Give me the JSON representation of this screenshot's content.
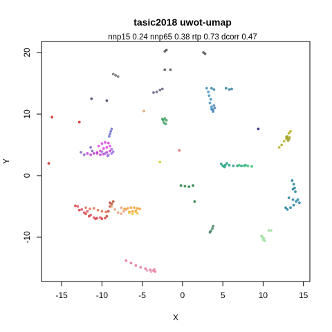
{
  "chart_data": {
    "type": "scatter",
    "title": "tasic2018 uwot-umap",
    "subtitle": "nnp15 0.24 nnp65 0.38 rtp 0.73 dcorr 0.47",
    "xlabel": "X",
    "ylabel": "Y",
    "xlim": [
      -17.5,
      15.8
    ],
    "ylim": [
      -17.2,
      21.8
    ],
    "xticks": [
      -15,
      -10,
      -5,
      0,
      5,
      10,
      15
    ],
    "yticks": [
      -10,
      0,
      10,
      20
    ],
    "grid": false,
    "legend": "none",
    "clusters": [
      {
        "color": "#e05060",
        "points": [
          [
            -13.0,
            -5.0
          ],
          [
            -12.5,
            -5.5
          ],
          [
            -12.2,
            -6.0
          ],
          [
            -11.8,
            -5.8
          ],
          [
            -11.4,
            -6.4
          ],
          [
            -11.0,
            -6.8
          ],
          [
            -10.6,
            -6.9
          ],
          [
            -10.2,
            -6.8
          ]
        ]
      },
      {
        "color": "#d84040",
        "points": [
          [
            -13.3,
            -4.9
          ],
          [
            -12.8,
            -5.6
          ],
          [
            -12.0,
            -6.2
          ],
          [
            -11.6,
            -6.6
          ],
          [
            -10.8,
            -7.0
          ],
          [
            -10.0,
            -7.0
          ],
          [
            -9.6,
            -6.9
          ]
        ]
      },
      {
        "color": "#b84a30",
        "points": [
          [
            -9.4,
            -6.6
          ],
          [
            -9.2,
            -5.8
          ],
          [
            -9.0,
            -5.0
          ],
          [
            -8.8,
            -4.6
          ],
          [
            -8.6,
            -4.2
          ],
          [
            -9.0,
            -4.4
          ]
        ]
      },
      {
        "color": "#e07050",
        "points": [
          [
            -12.0,
            -5.2
          ],
          [
            -11.5,
            -5.4
          ],
          [
            -11.0,
            -5.3
          ],
          [
            -10.5,
            -5.6
          ],
          [
            -10.0,
            -5.8
          ],
          [
            -9.5,
            -5.9
          ]
        ]
      },
      {
        "color": "#e8a080",
        "points": [
          [
            -8.8,
            -5.0
          ],
          [
            -8.4,
            -5.5
          ],
          [
            -8.0,
            -6.0
          ],
          [
            -7.6,
            -6.2
          ],
          [
            -7.3,
            -5.8
          ],
          [
            -7.0,
            -5.5
          ],
          [
            -7.6,
            -5.2
          ]
        ]
      },
      {
        "color": "#f0a030",
        "points": [
          [
            -7.2,
            -5.4
          ],
          [
            -6.8,
            -5.3
          ],
          [
            -6.4,
            -5.2
          ],
          [
            -6.0,
            -5.2
          ],
          [
            -5.6,
            -5.3
          ],
          [
            -5.3,
            -5.4
          ],
          [
            -6.2,
            -5.8
          ],
          [
            -6.6,
            -5.9
          ],
          [
            -5.8,
            -5.7
          ]
        ]
      },
      {
        "color": "#f0c040",
        "points": [
          [
            -6.6,
            -6.0
          ],
          [
            -6.2,
            -6.2
          ],
          [
            -5.8,
            -5.9
          ],
          [
            -5.6,
            -6.1
          ]
        ]
      },
      {
        "color": "#e870a0",
        "points": [
          [
            -7.0,
            -13.8
          ],
          [
            -6.4,
            -14.2
          ],
          [
            -5.8,
            -14.6
          ],
          [
            -5.2,
            -14.9
          ],
          [
            -4.6,
            -15.1
          ],
          [
            -4.0,
            -15.3
          ],
          [
            -3.6,
            -15.4
          ],
          [
            -3.4,
            -15.6
          ]
        ]
      },
      {
        "color": "#e8a0b0",
        "points": [
          [
            -4.4,
            -15.4
          ],
          [
            -3.9,
            -15.6
          ],
          [
            -3.5,
            -15.2
          ]
        ]
      },
      {
        "color": "#e040e0",
        "points": [
          [
            -10.4,
            4.8
          ],
          [
            -10.0,
            5.2
          ],
          [
            -9.6,
            5.4
          ],
          [
            -9.2,
            5.3
          ],
          [
            -9.0,
            4.8
          ],
          [
            -9.4,
            4.6
          ],
          [
            -9.8,
            4.4
          ],
          [
            -10.2,
            4.0
          ],
          [
            -10.6,
            3.8
          ]
        ]
      },
      {
        "color": "#c040d0",
        "points": [
          [
            -11.8,
            3.6
          ],
          [
            -11.4,
            3.4
          ],
          [
            -11.0,
            3.6
          ],
          [
            -10.6,
            3.6
          ],
          [
            -10.2,
            3.4
          ],
          [
            -9.8,
            3.5
          ],
          [
            -9.4,
            3.8
          ],
          [
            -9.0,
            4.0
          ]
        ]
      },
      {
        "color": "#a070e0",
        "points": [
          [
            -10.0,
            3.9
          ],
          [
            -9.6,
            3.6
          ],
          [
            -9.2,
            3.4
          ],
          [
            -8.8,
            3.6
          ],
          [
            -8.6,
            3.9
          ],
          [
            -8.8,
            4.3
          ],
          [
            -9.3,
            3.2
          ]
        ]
      },
      {
        "color": "#8060c0",
        "points": [
          [
            -11.4,
            4.6
          ],
          [
            -11.2,
            4.0
          ],
          [
            -12.6,
            3.8
          ],
          [
            -12.2,
            3.4
          ]
        ]
      },
      {
        "color": "#7070d0",
        "points": [
          [
            -9.0,
            6.8
          ],
          [
            -8.9,
            7.2
          ],
          [
            -8.8,
            7.6
          ],
          [
            -9.1,
            6.4
          ]
        ]
      },
      {
        "color": "#40a060",
        "points": [
          [
            -2.4,
            9.0
          ],
          [
            -2.2,
            9.3
          ],
          [
            -2.0,
            9.0
          ],
          [
            -2.3,
            8.6
          ],
          [
            -2.1,
            8.4
          ],
          [
            -2.5,
            9.2
          ]
        ]
      },
      {
        "color": "#208040",
        "points": [
          [
            -0.2,
            -1.6
          ],
          [
            0.3,
            -1.7
          ],
          [
            0.8,
            -1.8
          ],
          [
            1.3,
            -1.6
          ],
          [
            1.5,
            -4.2
          ]
        ]
      },
      {
        "color": "#20a080",
        "points": [
          [
            4.8,
            1.9
          ],
          [
            5.0,
            1.6
          ],
          [
            5.3,
            1.7
          ],
          [
            5.5,
            2.0
          ],
          [
            5.2,
            1.4
          ],
          [
            5.8,
            1.7
          ],
          [
            6.3,
            1.6
          ],
          [
            6.8,
            1.6
          ],
          [
            7.3,
            1.6
          ],
          [
            7.8,
            1.7
          ]
        ]
      },
      {
        "color": "#30c070",
        "points": [
          [
            7.6,
            1.6
          ],
          [
            8.1,
            1.6
          ],
          [
            8.6,
            1.5
          ],
          [
            7.0,
            1.7
          ]
        ]
      },
      {
        "color": "#4090c0",
        "points": [
          [
            3.0,
            14.2
          ],
          [
            3.2,
            13.6
          ],
          [
            3.3,
            13.0
          ],
          [
            3.5,
            12.4
          ],
          [
            3.4,
            11.8
          ],
          [
            3.6,
            11.2
          ],
          [
            3.7,
            10.8
          ],
          [
            3.8,
            10.4
          ],
          [
            3.6,
            10.8
          ]
        ]
      },
      {
        "color": "#5080b0",
        "points": [
          [
            3.9,
            11.4
          ],
          [
            4.0,
            11.0
          ],
          [
            3.8,
            10.6
          ]
        ]
      },
      {
        "color": "#3080a0",
        "points": [
          [
            3.6,
            14.2
          ],
          [
            3.9,
            14.0
          ],
          [
            5.4,
            14.2
          ],
          [
            5.8,
            14.0
          ],
          [
            6.1,
            14.1
          ]
        ]
      },
      {
        "color": "#2080a0",
        "points": [
          [
            13.2,
            -3.6
          ],
          [
            13.7,
            -3.9
          ],
          [
            14.1,
            -4.2
          ],
          [
            14.5,
            -4.4
          ],
          [
            13.8,
            -4.8
          ],
          [
            13.4,
            -5.2
          ],
          [
            13.0,
            -5.5
          ],
          [
            12.8,
            -5.2
          ],
          [
            14.3,
            -3.9
          ]
        ]
      },
      {
        "color": "#208090",
        "points": [
          [
            13.6,
            -0.8
          ],
          [
            13.8,
            -1.4
          ],
          [
            13.9,
            -2.0
          ],
          [
            14.0,
            -2.6
          ],
          [
            13.7,
            -2.2
          ]
        ]
      },
      {
        "color": "#b0b020",
        "points": [
          [
            13.0,
            6.4
          ],
          [
            13.2,
            6.9
          ],
          [
            13.4,
            7.2
          ],
          [
            12.9,
            6.0
          ],
          [
            13.3,
            6.2
          ],
          [
            12.6,
            5.6
          ],
          [
            12.3,
            5.0
          ],
          [
            12.0,
            4.6
          ]
        ]
      },
      {
        "color": "#a0a030",
        "points": [
          [
            13.0,
            6.1
          ],
          [
            13.2,
            5.9
          ],
          [
            12.9,
            6.3
          ],
          [
            13.1,
            5.7
          ]
        ]
      },
      {
        "color": "#a0e0a0",
        "points": [
          [
            9.9,
            -10.0
          ],
          [
            10.0,
            -10.4
          ],
          [
            10.2,
            -10.6
          ],
          [
            9.8,
            -9.8
          ],
          [
            10.1,
            -10.2
          ],
          [
            10.7,
            -8.9
          ],
          [
            11.0,
            -8.9
          ]
        ]
      },
      {
        "color": "#408060",
        "points": [
          [
            3.5,
            -9.0
          ],
          [
            3.7,
            -8.6
          ],
          [
            3.8,
            -8.2
          ],
          [
            3.4,
            -9.2
          ]
        ]
      },
      {
        "color": "#707070",
        "points": [
          [
            -8.6,
            16.5
          ],
          [
            -8.3,
            16.3
          ],
          [
            -8.0,
            16.1
          ]
        ]
      },
      {
        "color": "#606080",
        "points": [
          [
            -3.2,
            13.6
          ],
          [
            -2.8,
            13.9
          ],
          [
            -2.5,
            14.1
          ],
          [
            -3.6,
            13.5
          ]
        ]
      },
      {
        "color": "#505050",
        "points": [
          [
            -2.2,
            20.2
          ],
          [
            -2.0,
            20.4
          ],
          [
            2.6,
            20.0
          ],
          [
            2.8,
            19.8
          ],
          [
            -1.5,
            17.2
          ],
          [
            -2.2,
            17.2
          ]
        ]
      },
      {
        "color": "#404060",
        "points": [
          [
            -11.3,
            12.5
          ],
          [
            -9.4,
            12.2
          ]
        ]
      },
      {
        "color": "#d02020",
        "points": [
          [
            -16.2,
            9.5
          ],
          [
            -16.6,
            2.0
          ],
          [
            -12.8,
            8.7
          ]
        ]
      },
      {
        "color": "#d0d020",
        "points": [
          [
            -2.8,
            2.2
          ]
        ]
      },
      {
        "color": "#e06060",
        "points": [
          [
            -0.4,
            4.1
          ]
        ]
      },
      {
        "color": "#e0a060",
        "points": [
          [
            -4.8,
            10.5
          ]
        ]
      },
      {
        "color": "#202080",
        "points": [
          [
            9.4,
            7.6
          ]
        ]
      }
    ]
  }
}
